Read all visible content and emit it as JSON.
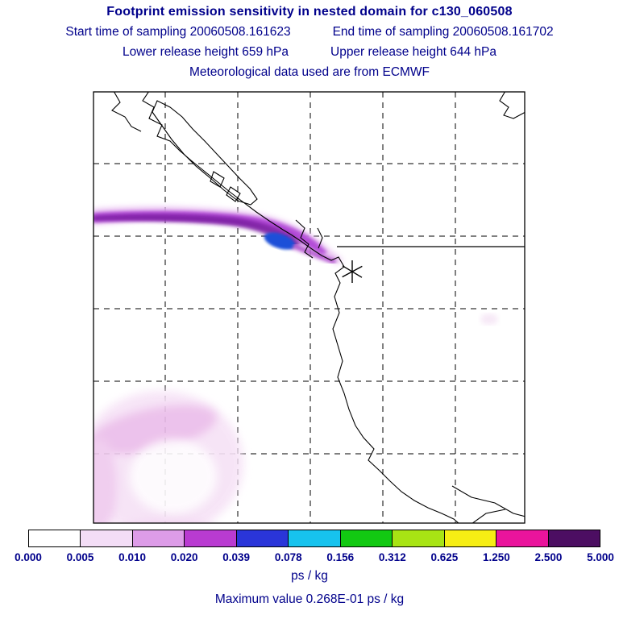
{
  "header": {
    "title": "Footprint emission sensitivity in nested domain for c130_060508",
    "start_time_label": "Start time of sampling 20060508.161623",
    "end_time_label": "End time of sampling 20060508.161702",
    "lower_release_label": "Lower release height  659 hPa",
    "upper_release_label": "Upper release height  644 hPa",
    "met_data_label": "Meteorological data used are from ECMWF"
  },
  "footer": {
    "units_label": "ps / kg",
    "max_value_label": "Maximum value  0.268E-01 ps / kg"
  },
  "colors": {
    "text": "#00008b",
    "plume_main": "#a832c8",
    "plume_core": "#1e4fd8",
    "faint_blob": "#efc9ee"
  },
  "chart_data": {
    "type": "heatmap",
    "title": "Footprint emission sensitivity in nested domain for c130_060508",
    "subtitle_lines": [
      "Start time of sampling 20060508.161623    End time of sampling 20060508.161702",
      "Lower release height  659 hPa    Upper release height  644 hPa",
      "Meteorological data used are from ECMWF"
    ],
    "units": "ps / kg",
    "max_value": 0.0268,
    "max_value_label": "Maximum value  0.268E-01 ps / kg",
    "map_region": "Pacific Northwest coast (Vancouver Island / Washington / Oregon / northern California)",
    "grid": "dashed lat-lon gridlines, 6x6 cells; solid line eastward from coast near release latitude",
    "colorbar": {
      "orientation": "horizontal",
      "boundaries": [
        0.0,
        0.005,
        0.01,
        0.02,
        0.039,
        0.078,
        0.156,
        0.312,
        0.625,
        1.25,
        2.5,
        5.0
      ],
      "tick_labels": [
        "0.000",
        "0.005",
        "0.010",
        "0.020",
        "0.039",
        "0.078",
        "0.156",
        "0.312",
        "0.625",
        "1.250",
        "2.500",
        "5.000"
      ],
      "segment_colors": [
        "#ffffff",
        "#f3ddf6",
        "#dd9ce8",
        "#b93bd1",
        "#2a35d9",
        "#17c3ee",
        "#12c912",
        "#a8e414",
        "#f6ee14",
        "#ea149c",
        "#4c0e62"
      ]
    },
    "features": {
      "plume": "narrow west-east sensitivity band entering from the west edge, purple core with lavender fringe, blue maximum offshore just west of the coast, thin tail reaching the coast at the release point",
      "release_marker": "asterisk (star) on the coast at the release location",
      "secondary_blob": "very faint pink ring-shaped sensitivity patch in the lower-left (south-west) of the domain"
    }
  }
}
